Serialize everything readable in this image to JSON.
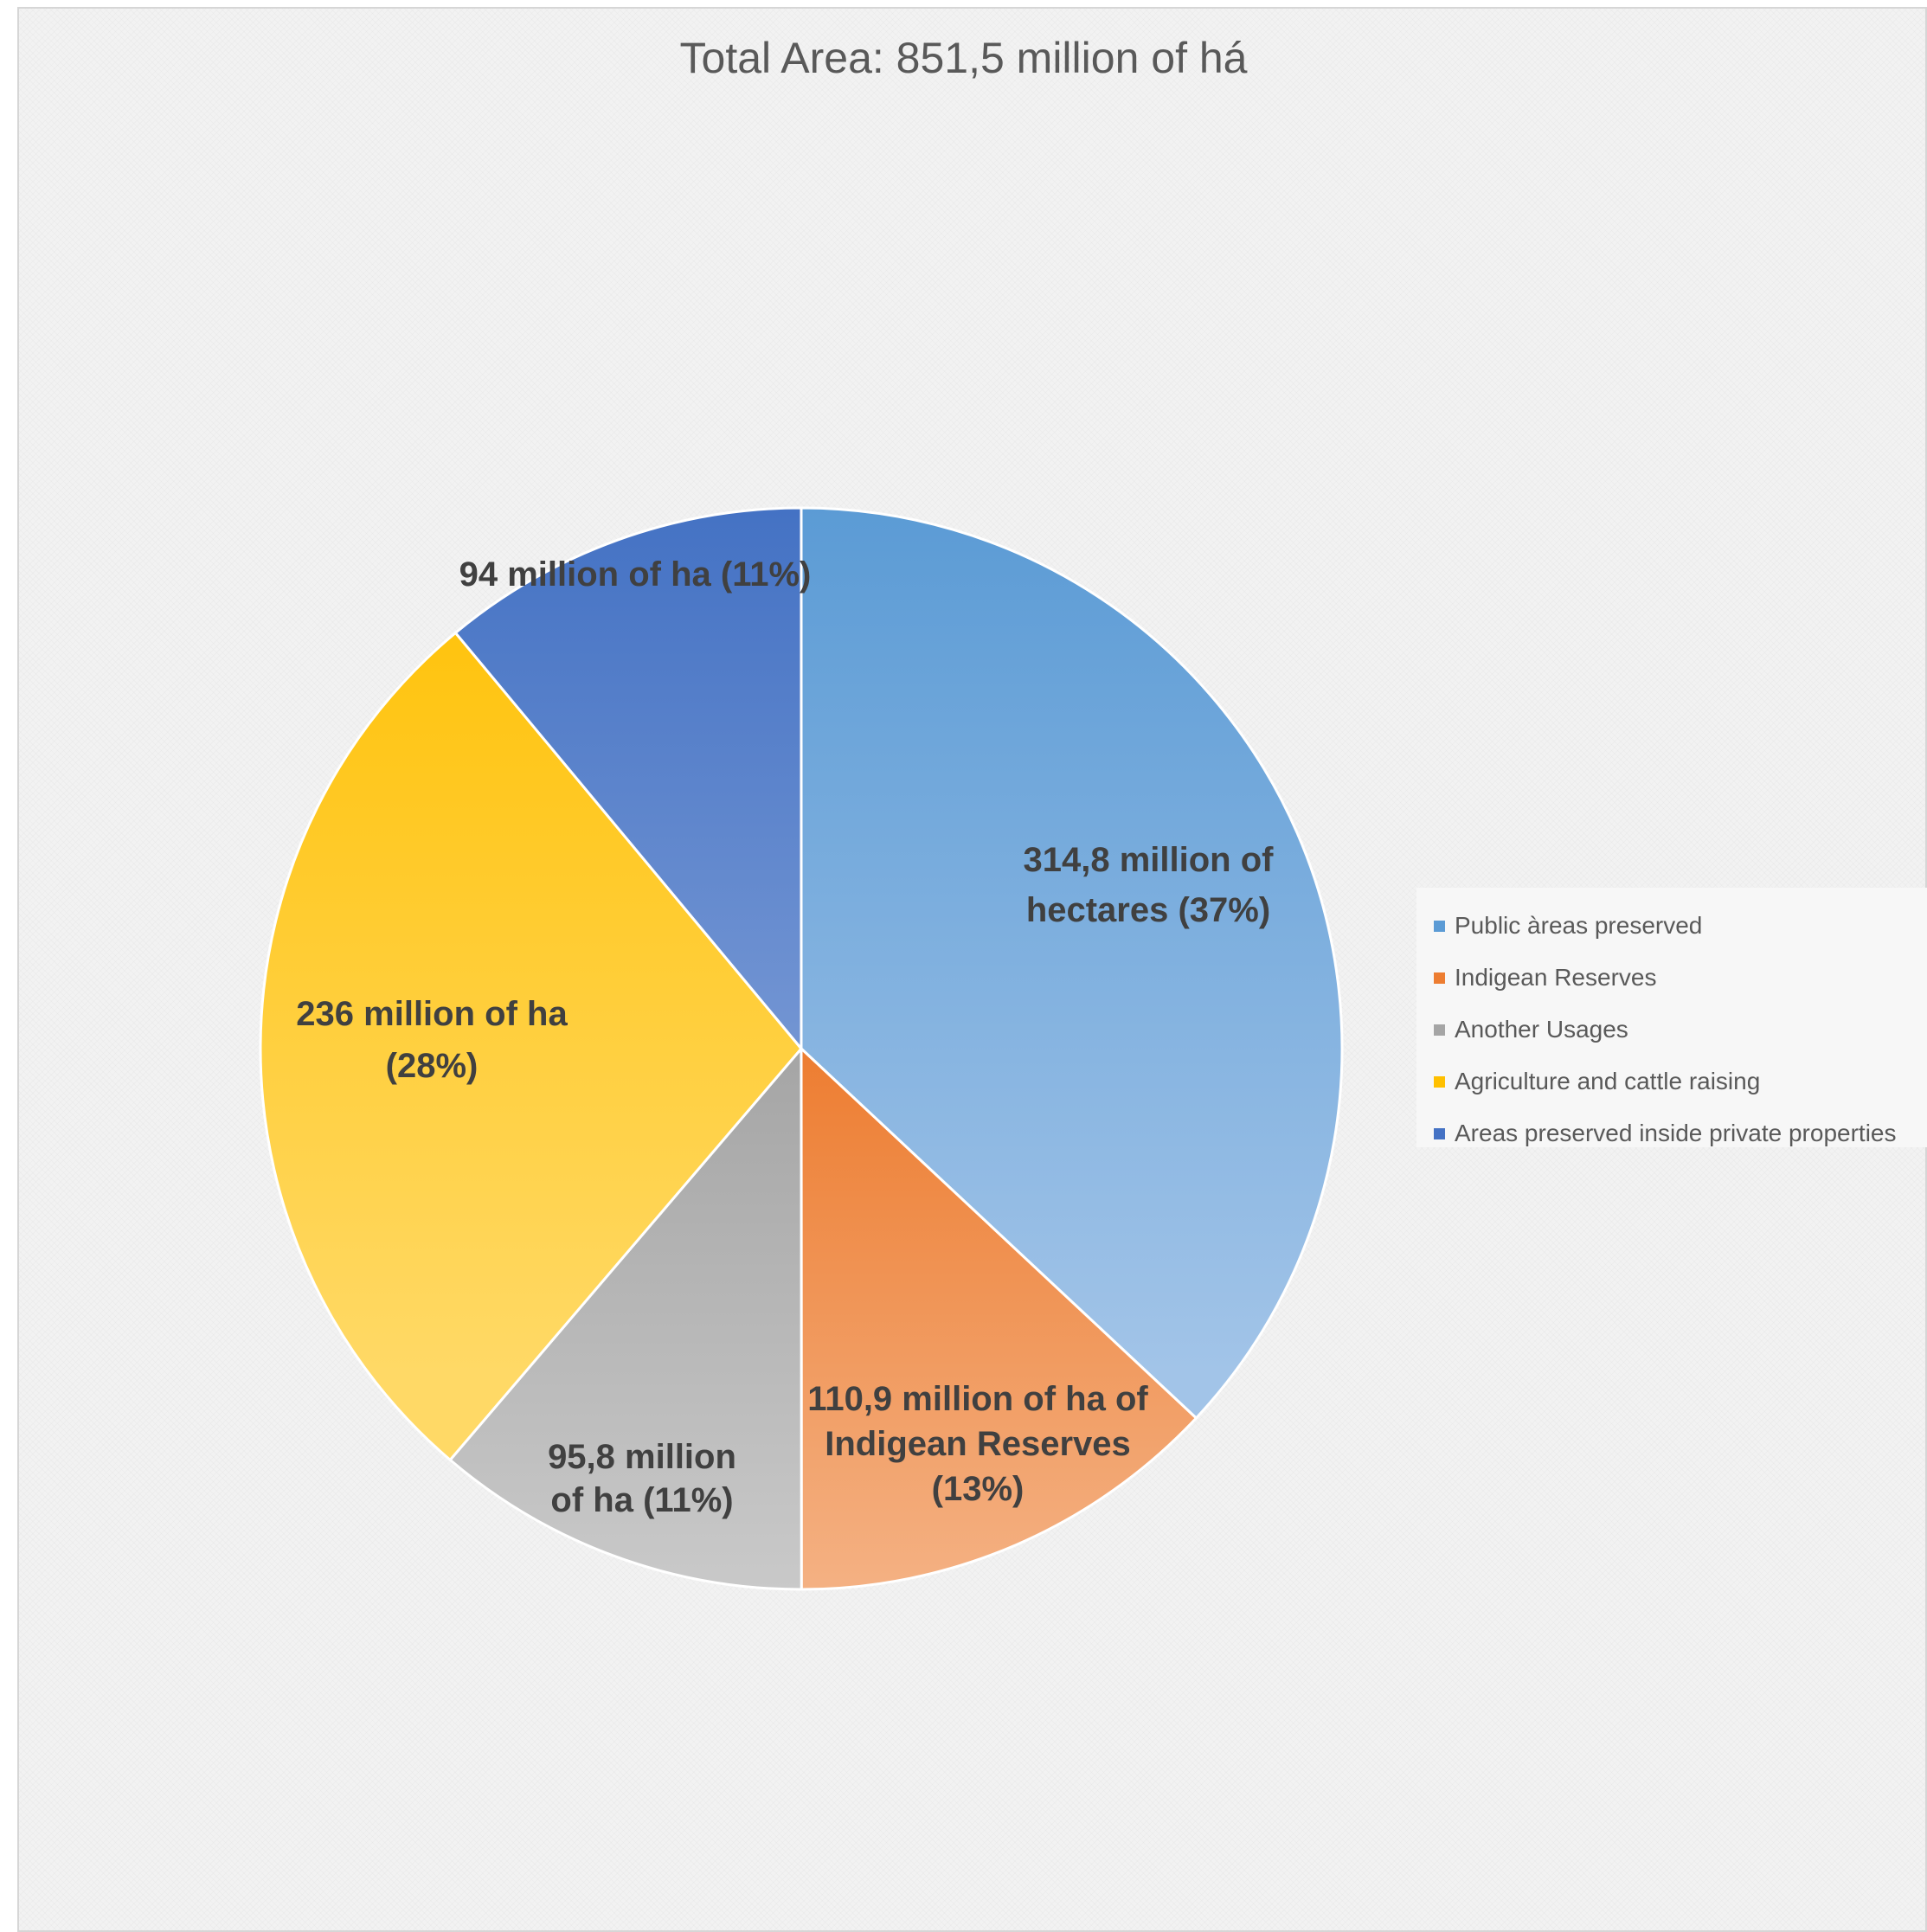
{
  "chart_data": {
    "type": "pie",
    "title": "Total Area: 851,5 million of há",
    "categories": [
      "Public àreas preserved",
      "Indigean Reserves",
      "Another Usages",
      "Agriculture and cattle raising",
      "Areas preserved inside private properties"
    ],
    "values": [
      314.8,
      110.9,
      95.8,
      236,
      94
    ],
    "units": "million of ha",
    "data_labels": [
      [
        "314,8 million of",
        "hectares (37%)"
      ],
      [
        "110,9 million of ha of",
        "Indigean Reserves",
        "(13%)"
      ],
      [
        "95,8 million",
        "of ha (11%)"
      ],
      [
        "236 million of ha",
        "(28%)"
      ],
      [
        "94 million of ha (11%)"
      ]
    ],
    "colors": [
      [
        "#5b9bd5",
        "#a2c4e8"
      ],
      [
        "#ed7d31",
        "#f4b183"
      ],
      [
        "#a5a5a5",
        "#c9c9c9"
      ],
      [
        "#ffc000",
        "#ffd966"
      ],
      [
        "#4472c4",
        "#8faadc"
      ]
    ],
    "legend_position": "right",
    "start_angle": "12 o'clock",
    "direction": "clockwise"
  }
}
